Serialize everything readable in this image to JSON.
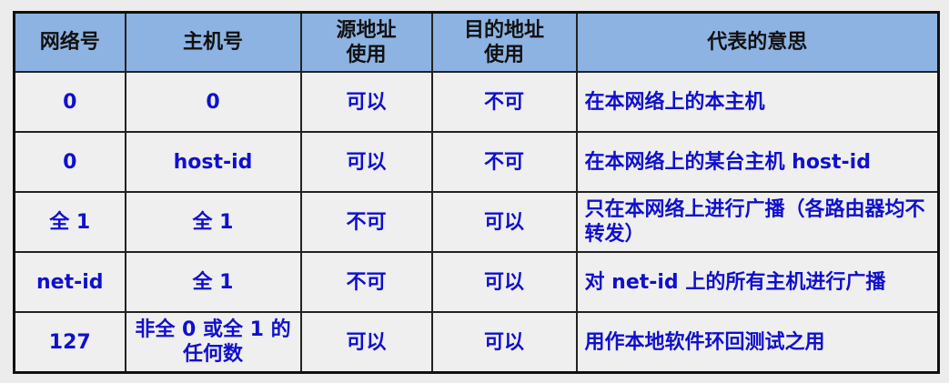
{
  "colors": {
    "header_bg": "#8db3e2",
    "text": "#1010cc",
    "border": "#222222"
  },
  "headers": [
    "网络号",
    "主机号",
    "源地址\n使用",
    "目的地址\n使用",
    "代表的意思"
  ],
  "rows": [
    [
      "0",
      "0",
      "可以",
      "不可",
      "在本网络上的本主机"
    ],
    [
      "0",
      "host-id",
      "可以",
      "不可",
      "在本网络上的某台主机 host-id"
    ],
    [
      "全 1",
      "全 1",
      "不可",
      "可以",
      "只在本网络上进行广播（各路由器均不转发）"
    ],
    [
      "net-id",
      "全 1",
      "不可",
      "可以",
      "对 net-id 上的所有主机进行广播"
    ],
    [
      "127",
      "非全 0 或全 1 的任何数",
      "可以",
      "可以",
      "用作本地软件环回测试之用"
    ]
  ]
}
